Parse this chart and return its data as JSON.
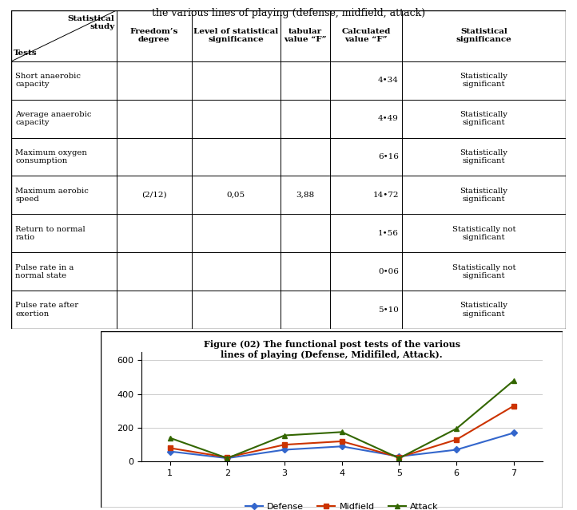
{
  "title_line1": "the various lines of playing (defense, midfield, attack)",
  "col_headers": [
    "Freedom’s\ndegree",
    "Level of statistical\nsignificance",
    "tabular\nvalue “F”",
    "Calculated\nvalue “F”",
    "Statistical\nsignificance"
  ],
  "rows": [
    [
      "Short anaerobic\ncapacity",
      "",
      "",
      "",
      "4•34",
      "Statistically\nsignificant"
    ],
    [
      "Average anaerobic\ncapacity",
      "",
      "",
      "",
      "4•49",
      "Statistically\nsignificant"
    ],
    [
      "Maximum oxygen\nconsumption",
      "",
      "",
      "",
      "6•16",
      "Statistically\nsignificant"
    ],
    [
      "Maximum aerobic\nspeed",
      "(2/12)",
      "0,05",
      "3,88",
      "14•72",
      "Statistically\nsignificant"
    ],
    [
      "Return to normal\nratio",
      "",
      "",
      "",
      "1•56",
      "Statistically not\nsignificant"
    ],
    [
      "Pulse rate in a\nnormal state",
      "",
      "",
      "",
      "0•06",
      "Statistically not\nsignificant"
    ],
    [
      "Pulse rate after\nexertion",
      "",
      "",
      "",
      "5•10",
      "Statistically\nsignificant"
    ]
  ],
  "chart_title_line1": "Figure (02) The functional post tests of the various",
  "chart_title_line2": "lines of playing (Defense, Midifiled, Attack).",
  "x_values": [
    1,
    2,
    3,
    4,
    5,
    6,
    7
  ],
  "defense": [
    60,
    20,
    70,
    90,
    30,
    70,
    170
  ],
  "midfield": [
    80,
    25,
    100,
    120,
    25,
    130,
    330
  ],
  "attack": [
    140,
    20,
    155,
    175,
    20,
    195,
    480
  ],
  "defense_color": "#3366CC",
  "midfield_color": "#CC3300",
  "attack_color": "#336600",
  "ylim": [
    0,
    650
  ],
  "yticks": [
    0,
    200,
    400,
    600
  ],
  "legend_labels": [
    "Defense",
    "Midfield",
    "Attack"
  ]
}
